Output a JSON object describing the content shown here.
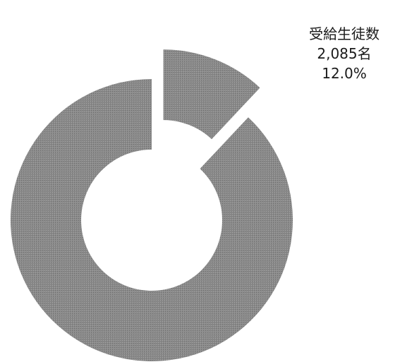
{
  "chart_data": {
    "type": "pie",
    "subtype": "donut",
    "exploded": true,
    "slices": [
      {
        "label": "受給生徒数",
        "count_text": "2,085名",
        "percent_text": "12.0%",
        "value": 12.0,
        "color": "#8a8a8a",
        "labeled": true
      },
      {
        "label": "",
        "value": 88.0,
        "color": "#8a8a8a",
        "labeled": false
      }
    ]
  }
}
